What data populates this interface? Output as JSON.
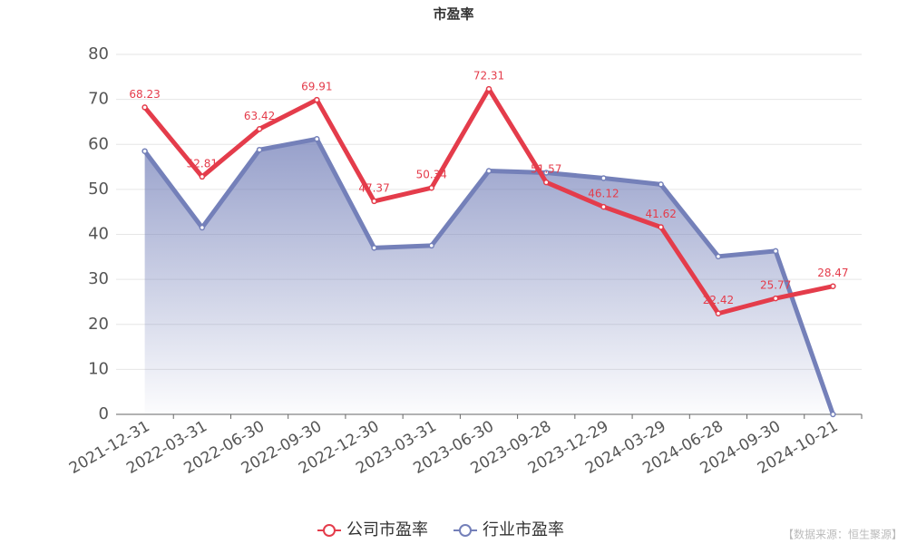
{
  "chart_data": {
    "type": "line",
    "title": "市盈率",
    "categories": [
      "2021-12-31",
      "2022-03-31",
      "2022-06-30",
      "2022-09-30",
      "2022-12-30",
      "2023-03-31",
      "2023-06-30",
      "2023-09-28",
      "2023-12-29",
      "2024-03-29",
      "2024-06-28",
      "2024-09-30",
      "2024-10-21"
    ],
    "series": [
      {
        "name": "公司市盈率",
        "color": "#e43c4b",
        "values": [
          68.23,
          52.81,
          63.42,
          69.91,
          47.37,
          50.34,
          72.31,
          51.57,
          46.12,
          41.62,
          22.42,
          25.77,
          28.47
        ],
        "data_labels": true
      },
      {
        "name": "行业市盈率",
        "color": "#7480b9",
        "values": [
          58.5,
          41.5,
          58.8,
          61.2,
          37.0,
          37.5,
          54.1,
          53.7,
          52.5,
          51.1,
          35.1,
          36.3,
          0
        ],
        "area": true
      }
    ],
    "ylim": [
      0,
      80
    ],
    "yticks": [
      0,
      10,
      20,
      30,
      40,
      50,
      60,
      70,
      80
    ],
    "grid": true,
    "legend": "bottom",
    "source": "【数据来源：恒生聚源】"
  }
}
